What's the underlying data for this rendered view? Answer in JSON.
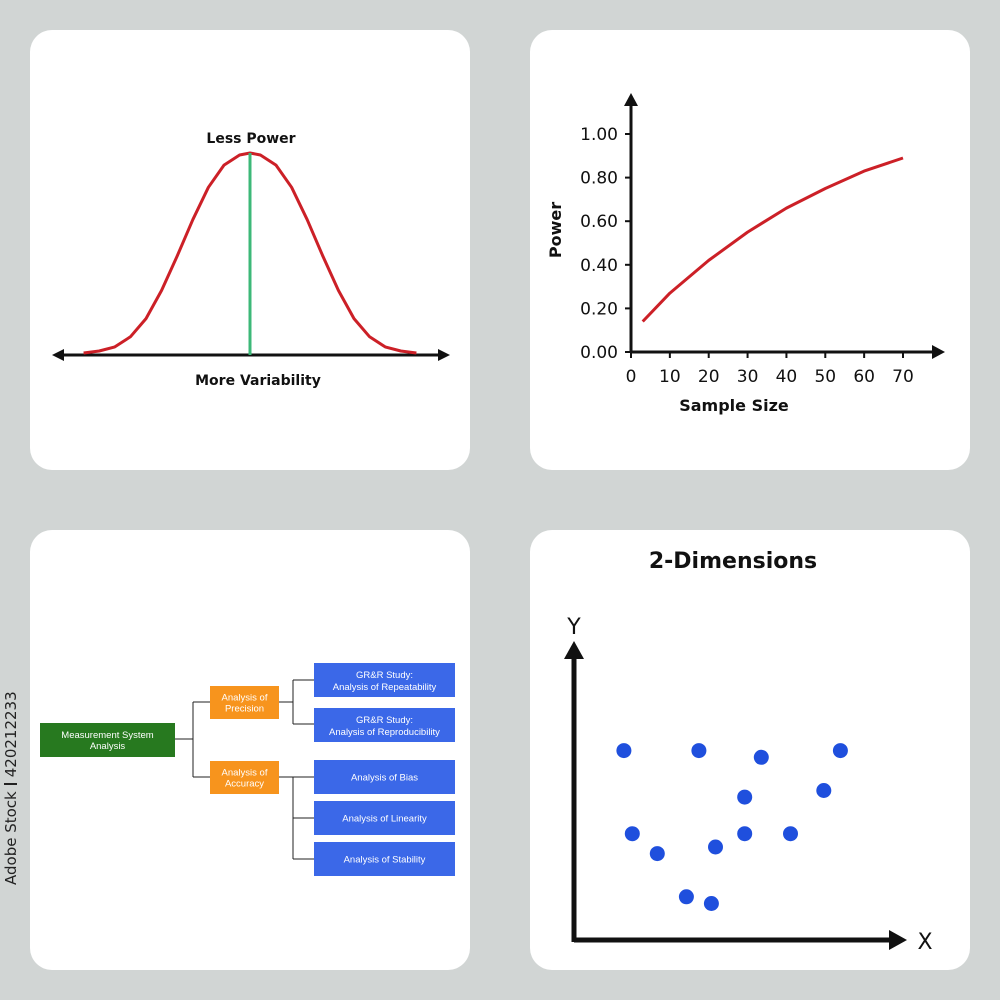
{
  "watermark": {
    "stock_id": "420212233",
    "brand": "Adobe Stock"
  },
  "colors": {
    "background": "#d1d5d4",
    "panel": "#ffffff",
    "curve_red": "#cc2027",
    "mean_green": "#3cb878",
    "node_green": "#27791f",
    "node_orange": "#f7941d",
    "node_blue": "#3b68e8",
    "point_blue": "#1f4fdd"
  },
  "chart_data": [
    {
      "type": "line",
      "top_label": "Less Power",
      "xlabel": "More Variability",
      "series": [
        {
          "x": [
            -3.2,
            -2.9,
            -2.6,
            -2.3,
            -2.0,
            -1.7,
            -1.4,
            -1.1,
            -0.8,
            -0.5,
            -0.2,
            0.0,
            0.2,
            0.5,
            0.8,
            1.1,
            1.4,
            1.7,
            2.0,
            2.3,
            2.6,
            2.9,
            3.2
          ],
          "y": [
            0.01,
            0.02,
            0.04,
            0.09,
            0.18,
            0.32,
            0.49,
            0.67,
            0.83,
            0.94,
            0.99,
            1.0,
            0.99,
            0.94,
            0.83,
            0.67,
            0.49,
            0.32,
            0.18,
            0.09,
            0.04,
            0.02,
            0.01
          ]
        }
      ],
      "mean_line_x": 0.0,
      "arrows": "both ends",
      "grid": false
    },
    {
      "type": "line",
      "xlabel": "Sample Size",
      "ylabel": "Power",
      "xticks": [
        "0",
        "10",
        "20",
        "30",
        "40",
        "50",
        "60",
        "70"
      ],
      "yticks": [
        "0.00",
        "0.20",
        "0.40",
        "0.60",
        "0.80",
        "1.00"
      ],
      "xlim": [
        0,
        70
      ],
      "ylim": [
        0,
        1
      ],
      "series": [
        {
          "x": [
            3,
            10,
            20,
            30,
            40,
            50,
            60,
            70
          ],
          "y": [
            0.14,
            0.27,
            0.42,
            0.55,
            0.66,
            0.75,
            0.83,
            0.89
          ]
        }
      ],
      "grid": false
    },
    {
      "type": "scatter",
      "title": "2-Dimensions",
      "xlabel": "X",
      "ylabel": "Y",
      "points": [
        {
          "x": 12,
          "y": 57
        },
        {
          "x": 30,
          "y": 57
        },
        {
          "x": 45,
          "y": 55
        },
        {
          "x": 64,
          "y": 57
        },
        {
          "x": 41,
          "y": 43
        },
        {
          "x": 60,
          "y": 45
        },
        {
          "x": 14,
          "y": 32
        },
        {
          "x": 34,
          "y": 28
        },
        {
          "x": 41,
          "y": 32
        },
        {
          "x": 52,
          "y": 32
        },
        {
          "x": 20,
          "y": 26
        },
        {
          "x": 27,
          "y": 13
        },
        {
          "x": 33,
          "y": 11
        }
      ],
      "xlim": [
        0,
        80
      ],
      "ylim": [
        0,
        90
      ],
      "grid": false
    }
  ],
  "diagram": {
    "root": "Measurement System Analysis",
    "branches": [
      {
        "label": "Analysis of Precision",
        "children": [
          "GR&R Study: Analysis of Repeatability",
          "GR&R Study: Analysis of Reproducibility"
        ]
      },
      {
        "label": "Analysis of Accuracy",
        "children": [
          "Analysis of Bias",
          "Analysis of Linearity",
          "Analysis of Stability"
        ]
      }
    ]
  }
}
